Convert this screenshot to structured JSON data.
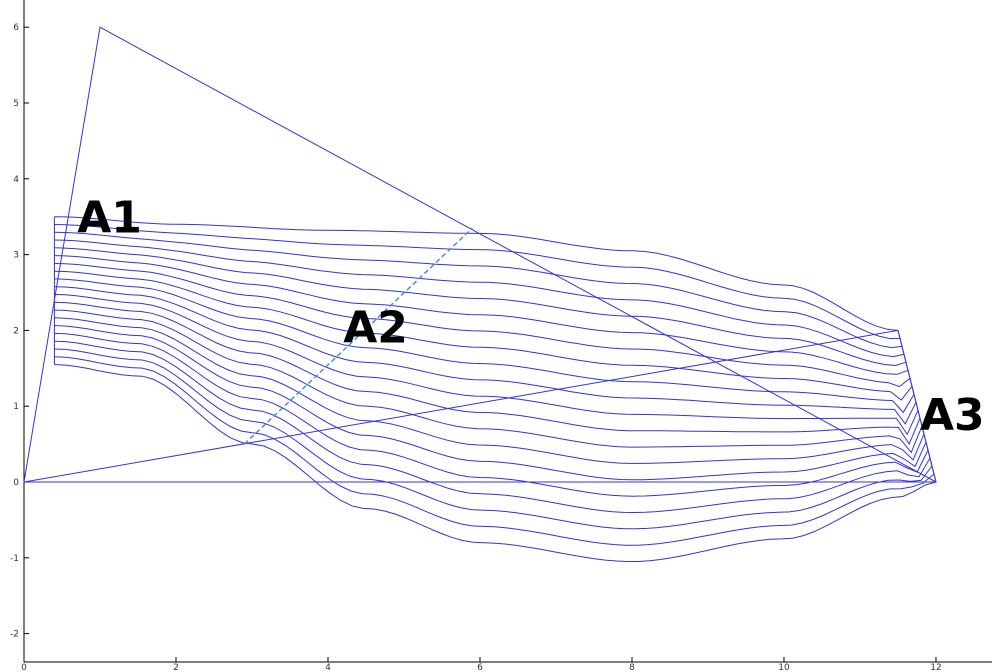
{
  "chart_data": {
    "type": "line",
    "title": "",
    "xlabel": "",
    "ylabel": "",
    "xlim": [
      0,
      12
    ],
    "ylim": [
      -2.3,
      6.2
    ],
    "grid": false,
    "x_ticks": [
      "0",
      "2",
      "4",
      "6",
      "8",
      "10",
      "12"
    ],
    "y_ticks": [
      "-2",
      "-1",
      "0",
      "1",
      "2",
      "3",
      "4",
      "5",
      "6"
    ],
    "colors": {
      "line": "#3333dd",
      "dashed": "#4a90d9",
      "axis": "#000000"
    },
    "triangles": [
      {
        "points": [
          [
            0,
            0
          ],
          [
            1,
            6
          ],
          [
            12,
            0
          ]
        ]
      },
      {
        "points": [
          [
            0,
            0
          ],
          [
            11.5,
            2
          ],
          [
            12,
            0
          ]
        ]
      }
    ],
    "curve_family": {
      "count": 20,
      "top_curve": {
        "x": [
          0.4,
          2,
          4,
          6,
          8,
          10,
          11.5
        ],
        "y": [
          3.5,
          3.4,
          3.32,
          3.28,
          3.05,
          2.6,
          2.0
        ]
      },
      "bottom_curve": {
        "x": [
          0.4,
          1.5,
          3,
          4.5,
          6,
          8,
          10,
          11.5,
          12
        ],
        "y": [
          1.55,
          1.4,
          0.5,
          -0.35,
          -0.8,
          -1.05,
          -0.75,
          -0.2,
          0
        ]
      }
    },
    "dashed_line": {
      "x": [
        2.9,
        5.9
      ],
      "y": [
        0.5,
        3.35
      ]
    },
    "annotations": [
      {
        "text": "A1",
        "x": 0.7,
        "y": 3.5
      },
      {
        "text": "A2",
        "x": 4.2,
        "y": 2.05
      },
      {
        "text": "A3",
        "x": 12.3,
        "y": 0.9
      }
    ]
  }
}
